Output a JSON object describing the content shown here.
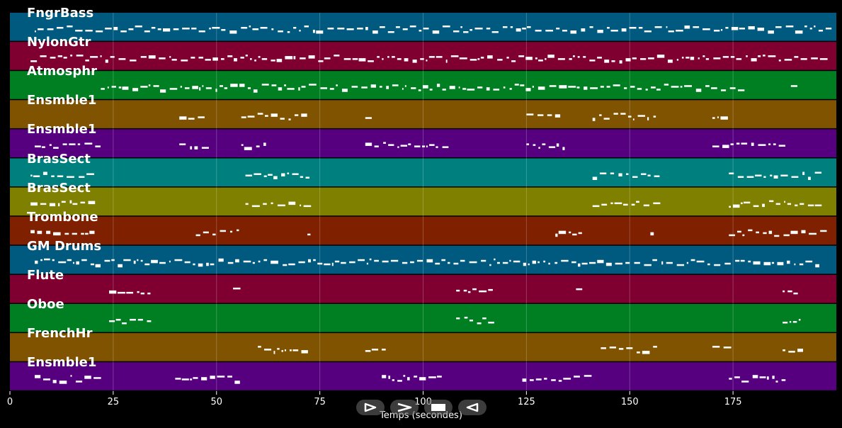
{
  "timeline": {
    "xlabel": "Temps (secondes)",
    "xlim": [
      0,
      200
    ],
    "ticks": [
      0,
      25,
      50,
      75,
      100,
      125,
      150,
      175
    ],
    "tick_labels": [
      "0",
      "25",
      "50",
      "75",
      "100",
      "125",
      "150",
      "175"
    ]
  },
  "tracks": [
    {
      "name": "FngrBass",
      "color": "#005a80"
    },
    {
      "name": "NylonGtr",
      "color": "#7f0030"
    },
    {
      "name": "Atmosphr",
      "color": "#007f22"
    },
    {
      "name": "Ensmble1",
      "color": "#7f5300"
    },
    {
      "name": "Ensmble1",
      "color": "#56007f"
    },
    {
      "name": "BrasSect",
      "color": "#007f7f"
    },
    {
      "name": "BrasSect",
      "color": "#7f7f00"
    },
    {
      "name": "Trombone",
      "color": "#7f2000"
    },
    {
      "name": "GM Drums",
      "color": "#005a80"
    },
    {
      "name": "Flute",
      "color": "#7f0030"
    },
    {
      "name": "Oboe",
      "color": "#007f22"
    },
    {
      "name": "FrenchHr",
      "color": "#7f5300"
    },
    {
      "name": "Ensmble1",
      "color": "#56007f"
    }
  ],
  "controls": {
    "play_icon": "play-icon",
    "forward_icon": "forward-icon",
    "stop_icon": "stop-icon",
    "rewind_icon": "rewind-icon"
  }
}
